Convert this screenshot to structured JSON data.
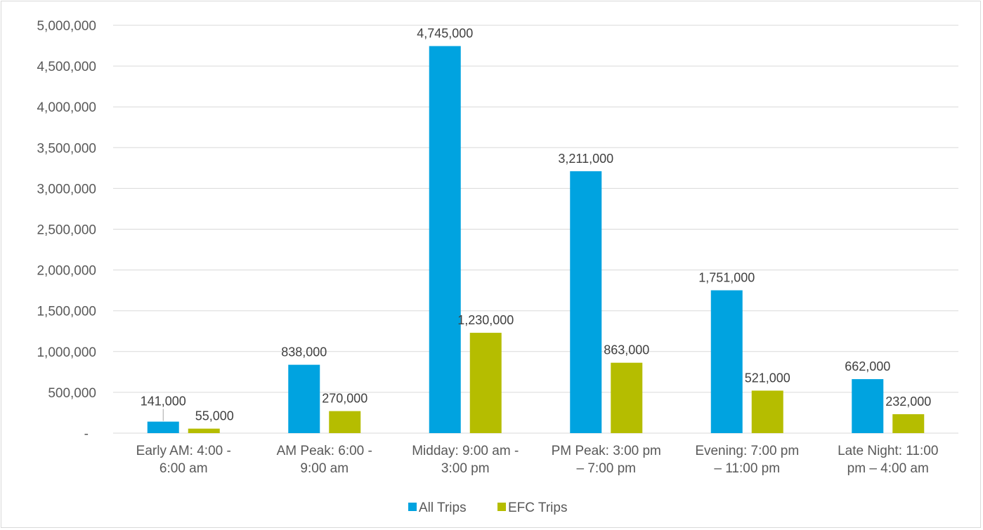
{
  "chart_data": {
    "type": "bar",
    "categories": [
      [
        "Early AM: 4:00 -",
        "6:00 am"
      ],
      [
        "AM Peak: 6:00 -",
        "9:00 am"
      ],
      [
        "Midday: 9:00 am -",
        "3:00 pm"
      ],
      [
        "PM Peak: 3:00 pm",
        "– 7:00 pm"
      ],
      [
        "Evening: 7:00 pm",
        "– 11:00 pm"
      ],
      [
        "Late Night: 11:00",
        "pm – 4:00 am"
      ]
    ],
    "series": [
      {
        "name": "All Trips",
        "color": "#00a3e0",
        "values": [
          141000,
          838000,
          4745000,
          3211000,
          1751000,
          662000
        ],
        "labels": [
          "141,000",
          "838,000",
          "4,745,000",
          "3,211,000",
          "1,751,000",
          "662,000"
        ]
      },
      {
        "name": "EFC Trips",
        "color": "#b5bd00",
        "values": [
          55000,
          270000,
          1230000,
          863000,
          521000,
          232000
        ],
        "labels": [
          "55,000",
          "270,000",
          "1,230,000",
          "863,000",
          "521,000",
          "232,000"
        ]
      }
    ],
    "ylim": [
      0,
      5000000
    ],
    "y_ticks": [
      {
        "value": 0,
        "label": "-"
      },
      {
        "value": 500000,
        "label": "500,000"
      },
      {
        "value": 1000000,
        "label": "1,000,000"
      },
      {
        "value": 1500000,
        "label": "1,500,000"
      },
      {
        "value": 2000000,
        "label": "2,000,000"
      },
      {
        "value": 2500000,
        "label": "2,500,000"
      },
      {
        "value": 3000000,
        "label": "3,000,000"
      },
      {
        "value": 3500000,
        "label": "3,500,000"
      },
      {
        "value": 4000000,
        "label": "4,000,000"
      },
      {
        "value": 4500000,
        "label": "4,500,000"
      },
      {
        "value": 5000000,
        "label": "5,000,000"
      }
    ],
    "grid": true,
    "legend": "bottom"
  }
}
